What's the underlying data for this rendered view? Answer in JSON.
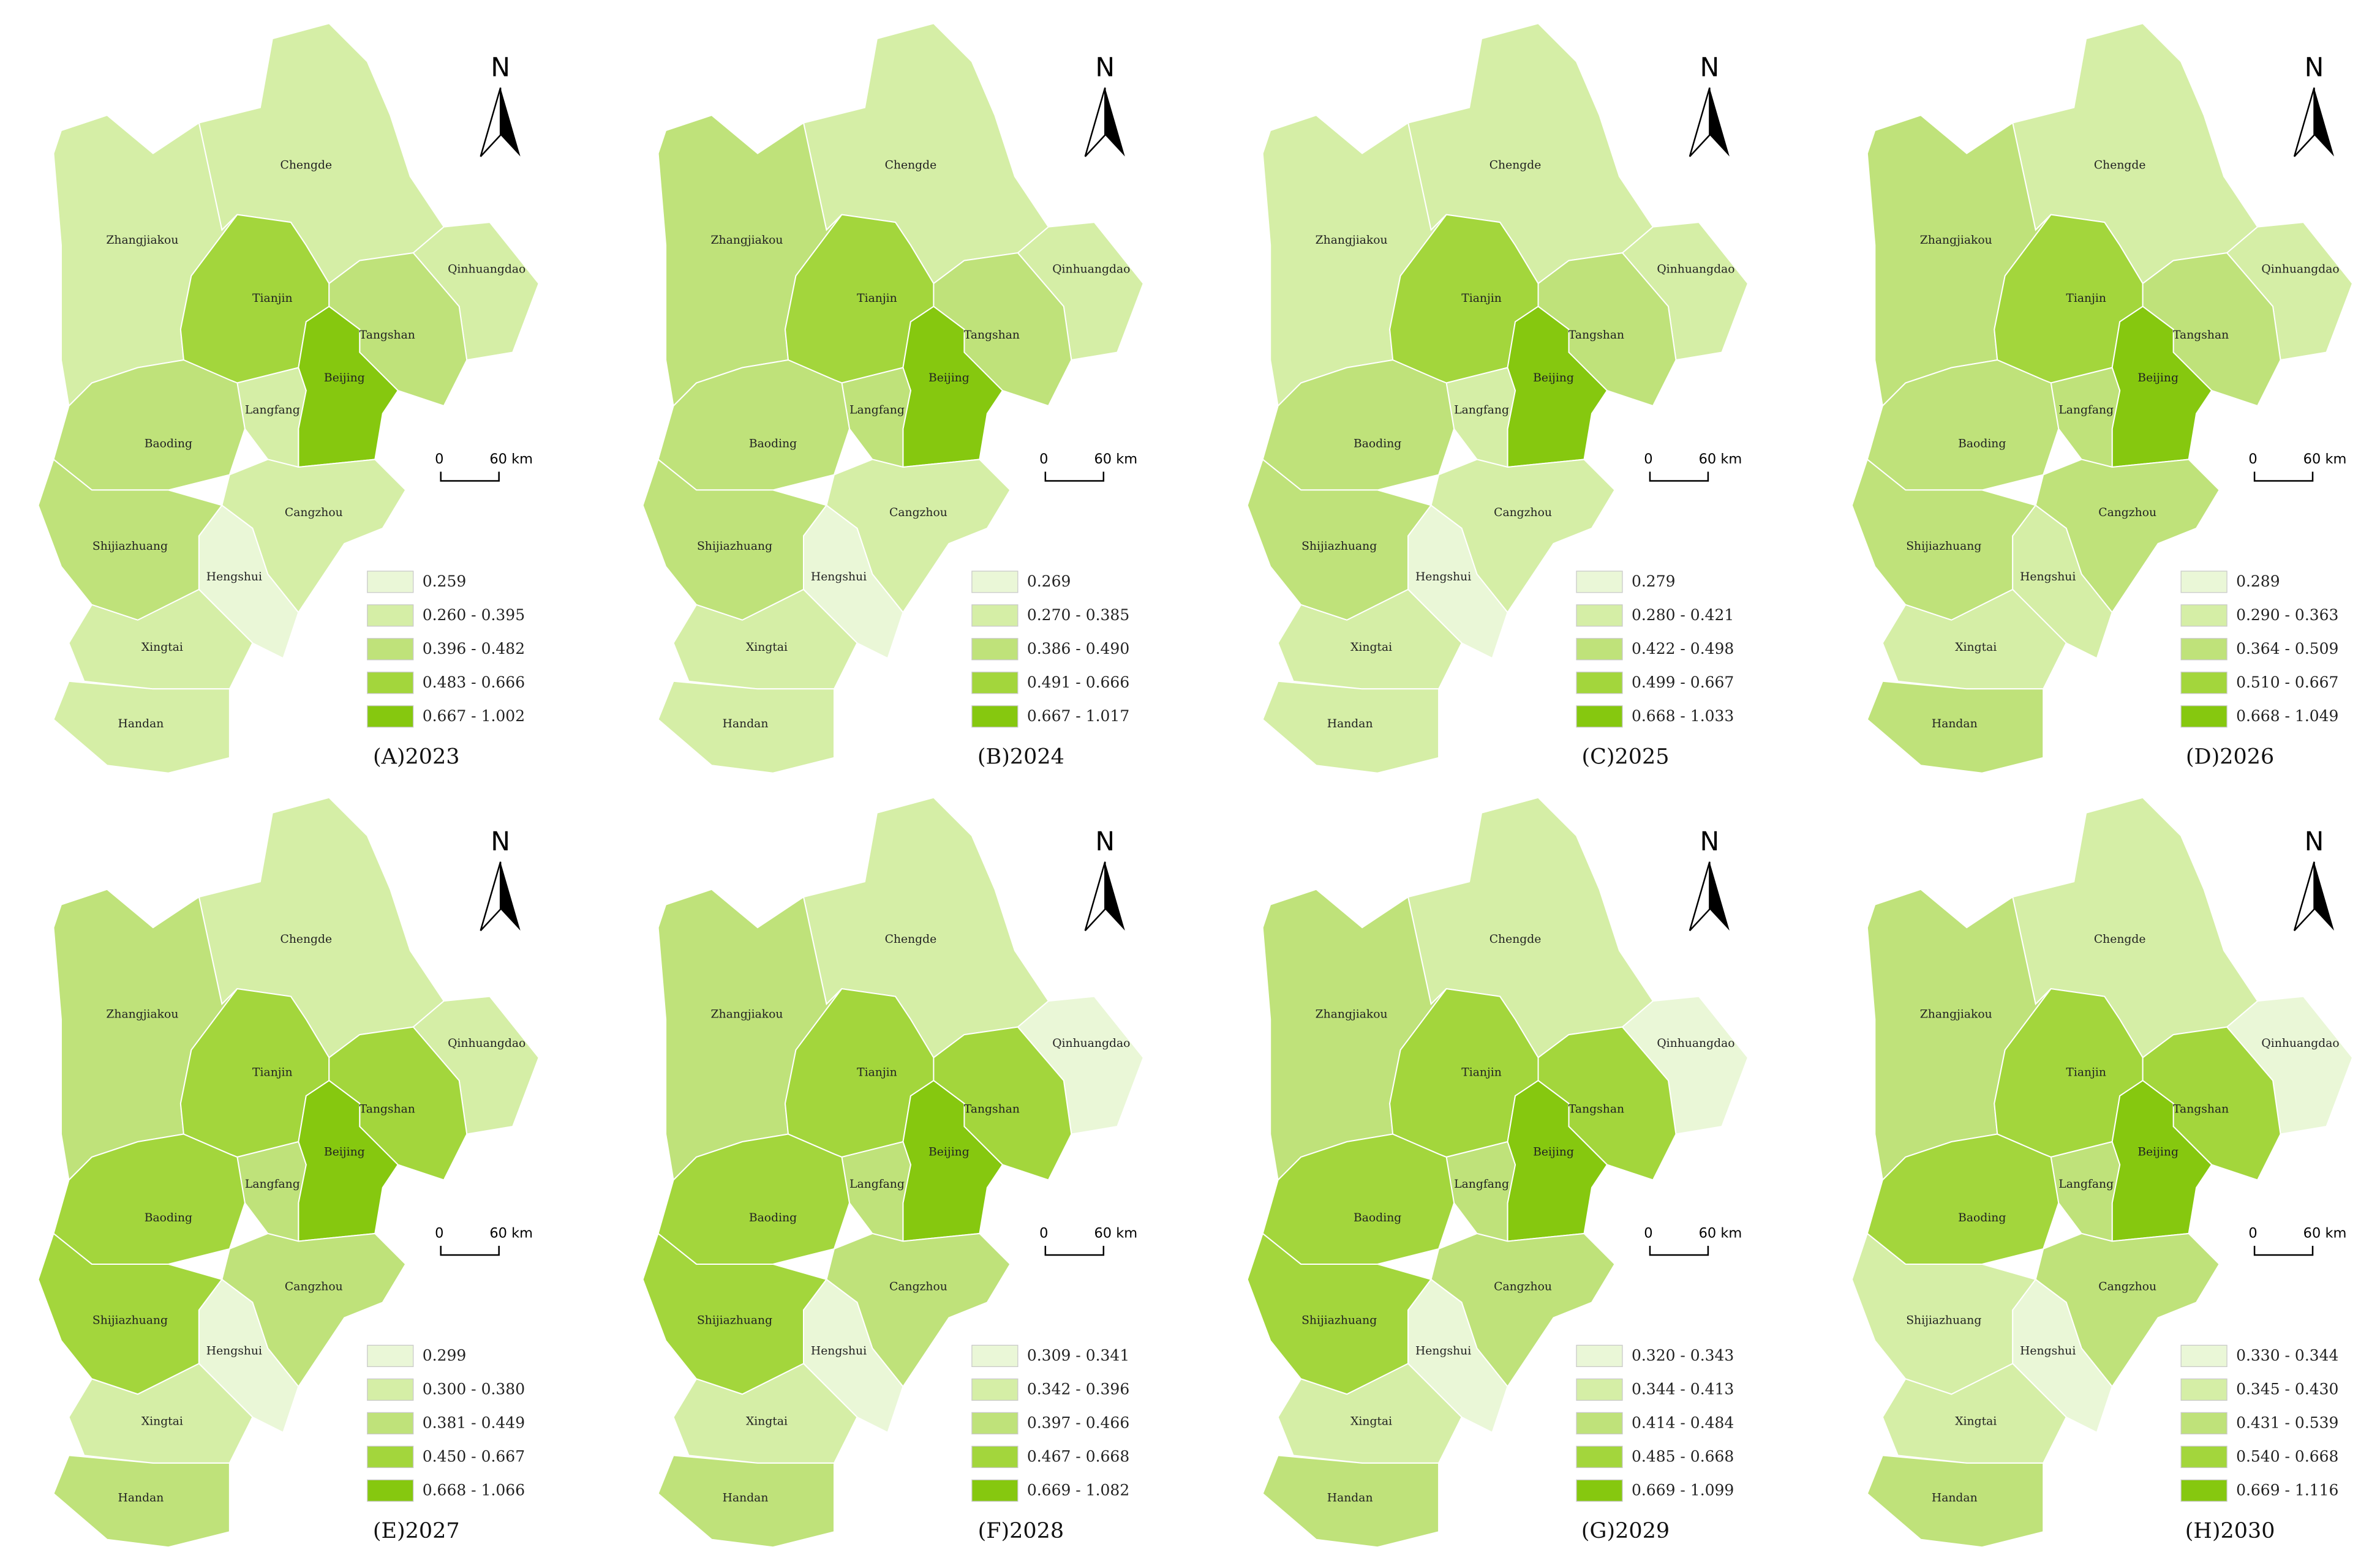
{
  "regions": [
    "Chengde",
    "Zhangjiakou",
    "Qinhuangdao",
    "Tianjin",
    "Tangshan",
    "Beijing",
    "Langfang",
    "Baoding",
    "Cangzhou",
    "Shijiazhuang",
    "Hengshui",
    "Xingtai",
    "Handan"
  ],
  "north": "N",
  "scale_zero": "0",
  "scale_label": "60 km",
  "legend_colors": [
    "#eaf7d7",
    "#d5eea6",
    "#bfe27a",
    "#a3d63c",
    "#86c80f"
  ],
  "panels": [
    {
      "caption": "(A)2023",
      "legend": [
        "0.259",
        "0.260 - 0.395",
        "0.396 - 0.482",
        "0.483 - 0.666",
        "0.667 - 1.002"
      ],
      "region_colors": [
        "#d5eea6",
        "#d5eea6",
        "#d5eea6",
        "#a3d63c",
        "#bfe27a",
        "#86c80f",
        "#d5eea6",
        "#bfe27a",
        "#d5eea6",
        "#bfe27a",
        "#eaf7d7",
        "#d5eea6",
        "#d5eea6"
      ]
    },
    {
      "caption": "(B)2024",
      "legend": [
        "0.269",
        "0.270 - 0.385",
        "0.386 - 0.490",
        "0.491 - 0.666",
        "0.667 - 1.017"
      ],
      "region_colors": [
        "#d5eea6",
        "#bfe27a",
        "#d5eea6",
        "#a3d63c",
        "#bfe27a",
        "#86c80f",
        "#bfe27a",
        "#bfe27a",
        "#d5eea6",
        "#bfe27a",
        "#eaf7d7",
        "#d5eea6",
        "#d5eea6"
      ]
    },
    {
      "caption": "(C)2025",
      "legend": [
        "0.279",
        "0.280 - 0.421",
        "0.422 - 0.498",
        "0.499 - 0.667",
        "0.668 - 1.033"
      ],
      "region_colors": [
        "#d5eea6",
        "#d5eea6",
        "#d5eea6",
        "#a3d63c",
        "#bfe27a",
        "#86c80f",
        "#d5eea6",
        "#bfe27a",
        "#d5eea6",
        "#bfe27a",
        "#eaf7d7",
        "#d5eea6",
        "#d5eea6"
      ]
    },
    {
      "caption": "(D)2026",
      "legend": [
        "0.289",
        "0.290 - 0.363",
        "0.364 - 0.509",
        "0.510 - 0.667",
        "0.668 - 1.049"
      ],
      "region_colors": [
        "#d5eea6",
        "#bfe27a",
        "#d5eea6",
        "#a3d63c",
        "#bfe27a",
        "#86c80f",
        "#bfe27a",
        "#bfe27a",
        "#bfe27a",
        "#bfe27a",
        "#d5eea6",
        "#d5eea6",
        "#bfe27a"
      ]
    },
    {
      "caption": "(E)2027",
      "legend": [
        "0.299",
        "0.300 - 0.380",
        "0.381 - 0.449",
        "0.450 - 0.667",
        "0.668 - 1.066"
      ],
      "region_colors": [
        "#d5eea6",
        "#bfe27a",
        "#d5eea6",
        "#a3d63c",
        "#a3d63c",
        "#86c80f",
        "#bfe27a",
        "#a3d63c",
        "#bfe27a",
        "#a3d63c",
        "#eaf7d7",
        "#d5eea6",
        "#bfe27a"
      ]
    },
    {
      "caption": "(F)2028",
      "legend": [
        "0.309 - 0.341",
        "0.342 - 0.396",
        "0.397 - 0.466",
        "0.467 - 0.668",
        "0.669 - 1.082"
      ],
      "region_colors": [
        "#d5eea6",
        "#bfe27a",
        "#eaf7d7",
        "#a3d63c",
        "#a3d63c",
        "#86c80f",
        "#bfe27a",
        "#a3d63c",
        "#bfe27a",
        "#a3d63c",
        "#eaf7d7",
        "#d5eea6",
        "#bfe27a"
      ]
    },
    {
      "caption": "(G)2029",
      "legend": [
        "0.320 - 0.343",
        "0.344 - 0.413",
        "0.414 - 0.484",
        "0.485 - 0.668",
        "0.669 - 1.099"
      ],
      "region_colors": [
        "#d5eea6",
        "#bfe27a",
        "#eaf7d7",
        "#a3d63c",
        "#a3d63c",
        "#86c80f",
        "#bfe27a",
        "#a3d63c",
        "#bfe27a",
        "#a3d63c",
        "#eaf7d7",
        "#d5eea6",
        "#bfe27a"
      ]
    },
    {
      "caption": "(H)2030",
      "legend": [
        "0.330 - 0.344",
        "0.345 - 0.430",
        "0.431 - 0.539",
        "0.540 - 0.668",
        "0.669 - 1.116"
      ],
      "region_colors": [
        "#d5eea6",
        "#bfe27a",
        "#eaf7d7",
        "#a3d63c",
        "#a3d63c",
        "#86c80f",
        "#bfe27a",
        "#a3d63c",
        "#bfe27a",
        "#d5eea6",
        "#eaf7d7",
        "#d5eea6",
        "#bfe27a"
      ]
    }
  ]
}
